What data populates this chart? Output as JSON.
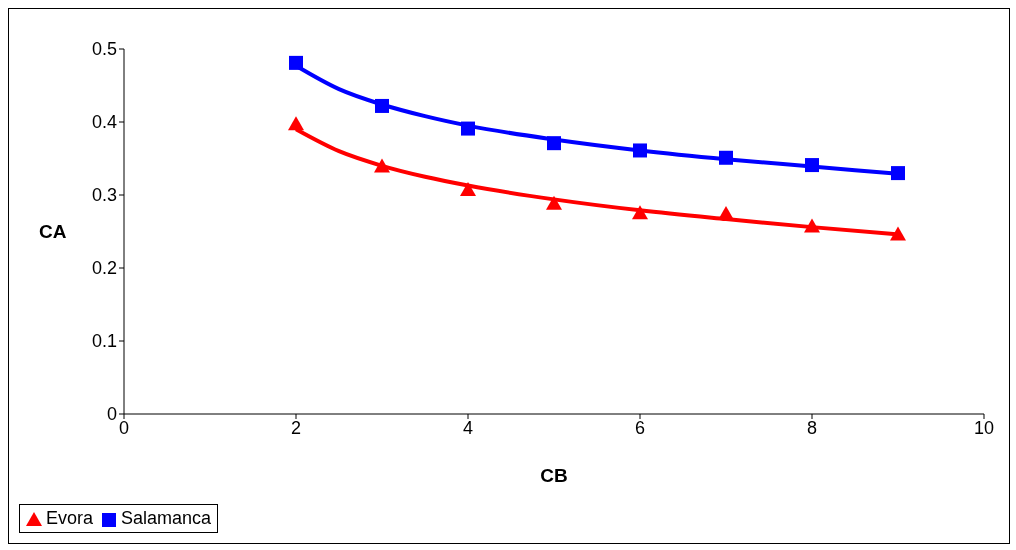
{
  "chart_data": {
    "type": "scatter",
    "xlabel": "CB",
    "ylabel": "CA",
    "xlim": [
      0,
      10
    ],
    "xticks": [
      0,
      2,
      4,
      6,
      8,
      10
    ],
    "ylim": [
      0,
      0.5
    ],
    "yticks": [
      0,
      0.1,
      0.2,
      0.3,
      0.4,
      0.5
    ],
    "grid": false,
    "legend": "bottom",
    "series": [
      {
        "name": "Evora",
        "color": "#ff0000",
        "marker": "triangle",
        "x": [
          2,
          3,
          4,
          5,
          6,
          7,
          8,
          9
        ],
        "values": [
          0.397,
          0.339,
          0.307,
          0.288,
          0.275,
          0.274,
          0.257,
          0.246
        ]
      },
      {
        "name": "Salamanca",
        "color": "#0000ff",
        "marker": "square",
        "x": [
          2,
          3,
          4,
          5,
          6,
          7,
          8,
          9
        ],
        "values": [
          0.481,
          0.422,
          0.391,
          0.371,
          0.361,
          0.351,
          0.341,
          0.33
        ]
      },
      {
        "type": "line",
        "color": "#ff0000",
        "marker": "none",
        "x": [
          2,
          2.5,
          3,
          3.5,
          4,
          5,
          6,
          7,
          8,
          9
        ],
        "values": [
          0.39,
          0.36,
          0.34,
          0.325,
          0.313,
          0.294,
          0.279,
          0.267,
          0.256,
          0.246
        ]
      },
      {
        "type": "line",
        "color": "#0000ff",
        "marker": "none",
        "x": [
          2,
          2.5,
          3,
          3.5,
          4,
          5,
          6,
          7,
          8,
          9
        ],
        "values": [
          0.477,
          0.445,
          0.424,
          0.408,
          0.395,
          0.376,
          0.361,
          0.349,
          0.339,
          0.329
        ]
      }
    ]
  }
}
